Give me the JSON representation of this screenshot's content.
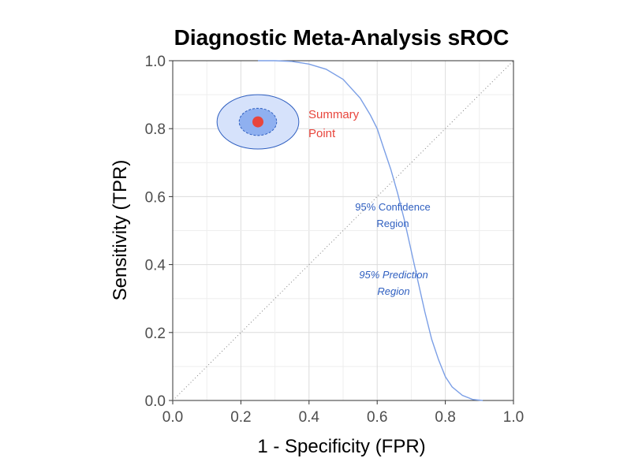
{
  "chart_data": {
    "type": "line",
    "title": "Diagnostic Meta-Analysis sROC",
    "xlabel": "1 - Specificity (FPR)",
    "ylabel": "Sensitivity (TPR)",
    "xlim": [
      0,
      1
    ],
    "ylim": [
      0,
      1
    ],
    "x_ticks": [
      "0.0",
      "0.2",
      "0.4",
      "0.6",
      "0.8",
      "1.0"
    ],
    "y_ticks": [
      "0.0",
      "0.2",
      "0.4",
      "0.6",
      "0.8",
      "1.0"
    ],
    "grid": true,
    "series": [
      {
        "color": "#7b9fe6",
        "x": [
          0.25,
          0.3,
          0.35,
          0.4,
          0.45,
          0.5,
          0.55,
          0.58,
          0.6,
          0.62,
          0.64,
          0.66,
          0.68,
          0.7,
          0.72,
          0.74,
          0.76,
          0.78,
          0.8,
          0.82,
          0.85,
          0.88,
          0.91
        ],
        "y": [
          1.0,
          1.0,
          0.998,
          0.99,
          0.975,
          0.945,
          0.89,
          0.84,
          0.8,
          0.74,
          0.68,
          0.61,
          0.53,
          0.44,
          0.35,
          0.26,
          0.18,
          0.12,
          0.07,
          0.04,
          0.015,
          0.003,
          0.0
        ]
      },
      {
        "style": "dotted",
        "color": "#7f7f7f",
        "x": [
          0,
          1
        ],
        "y": [
          0,
          1
        ]
      }
    ],
    "summary_point": {
      "x": 0.25,
      "y": 0.82,
      "color": "#e8453c"
    },
    "confidence_region": {
      "cx": 0.25,
      "cy": 0.82,
      "rx": 0.055,
      "ry": 0.04,
      "fill": "#8fb0f0",
      "stroke": "#2f5fc0"
    },
    "prediction_region": {
      "cx": 0.25,
      "cy": 0.82,
      "rx": 0.12,
      "ry": 0.08,
      "fill": "#d6e2fb",
      "stroke": "#2f5fc0"
    },
    "annotations": {
      "summary_line1": "Summary",
      "summary_line2": "Point",
      "summary_color": "#e8453c",
      "confidence_line1": "95% Confidence",
      "confidence_line2": "Region",
      "prediction_line1": "95% Prediction",
      "prediction_line2": "Region",
      "region_color": "#2f5fc0"
    }
  }
}
